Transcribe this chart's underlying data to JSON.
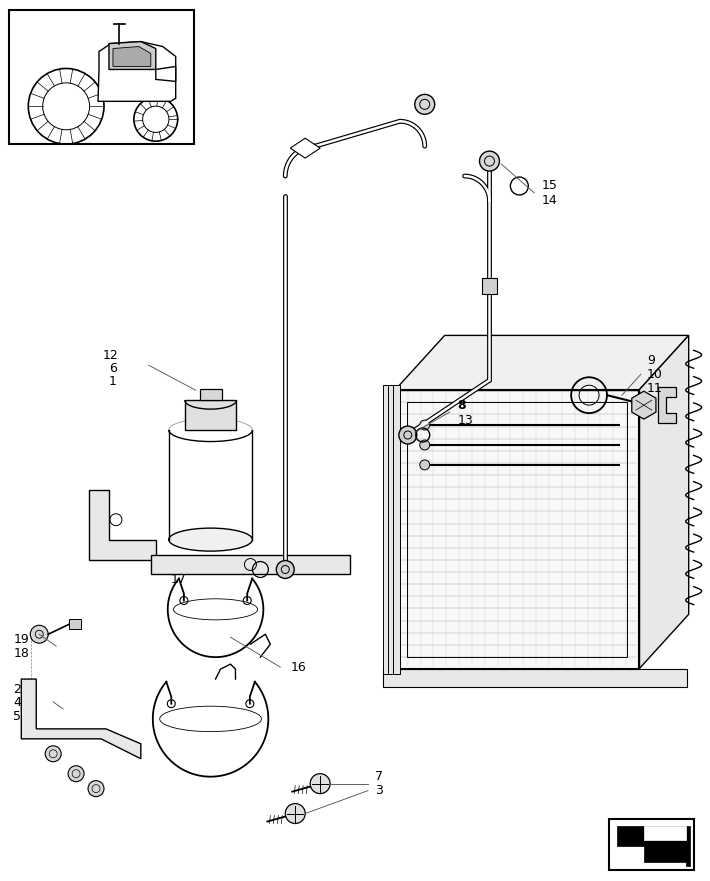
{
  "bg_color": "#ffffff",
  "line_color": "#000000",
  "fig_width": 7.1,
  "fig_height": 8.81,
  "dpi": 100
}
